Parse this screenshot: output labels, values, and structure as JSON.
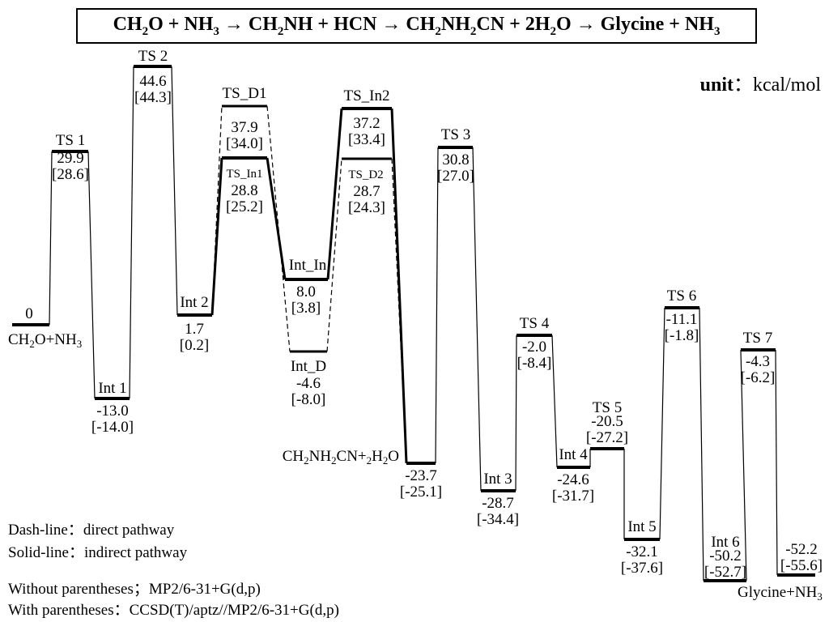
{
  "title": {
    "reaction": "CH2O + NH3 → CH2NH + HCN → CH2NH2CN + 2H2O → Glycine + NH3"
  },
  "unit": {
    "label": "unit",
    "value": "：kcal/mol"
  },
  "legend": {
    "dash": "Dash-line：direct pathway",
    "solid": "Solid-line：indirect pathway",
    "without": "Without parentheses；MP2/6-31+G(d,p)",
    "with": "With parentheses：CCSD(T)/aptz//MP2/6-31+G(d,p)"
  },
  "levels": [
    {
      "id": "reactants",
      "name": "CH2O+NH3",
      "mp2": "0",
      "ccsd": ""
    },
    {
      "id": "ts1",
      "name": "TS 1",
      "mp2": "29.9",
      "ccsd": "[28.6]"
    },
    {
      "id": "int1",
      "name": "Int 1",
      "mp2": "-13.0",
      "ccsd": "[-14.0]"
    },
    {
      "id": "ts2",
      "name": "TS 2",
      "mp2": "44.6",
      "ccsd": "[44.3]"
    },
    {
      "id": "int2",
      "name": "Int 2",
      "mp2": "1.7",
      "ccsd": "[0.2]"
    },
    {
      "id": "ts_d1",
      "name": "TS_D1",
      "mp2": "37.9",
      "ccsd": "[34.0]"
    },
    {
      "id": "ts_in1",
      "name": "TS_In1",
      "mp2": "28.8",
      "ccsd": "[25.2]"
    },
    {
      "id": "int_in",
      "name": "Int_In",
      "mp2": "8.0",
      "ccsd": "[3.8]"
    },
    {
      "id": "int_d",
      "name": "Int_D",
      "mp2": "-4.6",
      "ccsd": "[-8.0]"
    },
    {
      "id": "ts_in2",
      "name": "TS_In2",
      "mp2": "37.2",
      "ccsd": "[33.4]"
    },
    {
      "id": "ts_d2",
      "name": "TS_D2",
      "mp2": "28.7",
      "ccsd": "[24.3]"
    },
    {
      "id": "aminoacetonitrile",
      "name": "CH2NH2CN+2H2O",
      "mp2": "-23.7",
      "ccsd": "[-25.1]"
    },
    {
      "id": "ts3",
      "name": "TS 3",
      "mp2": "30.8",
      "ccsd": "[27.0]"
    },
    {
      "id": "int3",
      "name": "Int 3",
      "mp2": "-28.7",
      "ccsd": "[-34.4]"
    },
    {
      "id": "ts4",
      "name": "TS 4",
      "mp2": "-2.0",
      "ccsd": "[-8.4]"
    },
    {
      "id": "int4",
      "name": "Int 4",
      "mp2": "-24.6",
      "ccsd": "[-31.7]"
    },
    {
      "id": "ts5",
      "name": "TS 5",
      "mp2": "-20.5",
      "ccsd": "[-27.2]"
    },
    {
      "id": "int5",
      "name": "Int 5",
      "mp2": "-32.1",
      "ccsd": "[-37.6]"
    },
    {
      "id": "ts6",
      "name": "TS 6",
      "mp2": "-11.1",
      "ccsd": "[-1.8]"
    },
    {
      "id": "int6",
      "name": "Int 6",
      "mp2": "-50.2",
      "ccsd": "[-52.7]"
    },
    {
      "id": "ts7",
      "name": "TS 7",
      "mp2": "-4.3",
      "ccsd": "[-6.2]"
    },
    {
      "id": "products",
      "name": "Glycine+NH3",
      "mp2": "-52.2",
      "ccsd": "[-55.6]"
    }
  ],
  "connections": [
    {
      "from": "reactants",
      "to": "ts1",
      "style": "solid"
    },
    {
      "from": "ts1",
      "to": "int1",
      "style": "solid"
    },
    {
      "from": "int1",
      "to": "ts2",
      "style": "solid"
    },
    {
      "from": "ts2",
      "to": "int2",
      "style": "solid"
    },
    {
      "from": "int2",
      "to": "ts_d1",
      "style": "dashed"
    },
    {
      "from": "ts_d1",
      "to": "int_d",
      "style": "dashed"
    },
    {
      "from": "int_d",
      "to": "ts_d2",
      "style": "dashed"
    },
    {
      "from": "ts_d2",
      "to": "aminoacetonitrile",
      "style": "dashed"
    },
    {
      "from": "int2",
      "to": "ts_in1",
      "style": "bold"
    },
    {
      "from": "ts_in1",
      "to": "int_in",
      "style": "bold"
    },
    {
      "from": "int_in",
      "to": "ts_in2",
      "style": "bold"
    },
    {
      "from": "ts_in2",
      "to": "aminoacetonitrile",
      "style": "bold"
    },
    {
      "from": "aminoacetonitrile",
      "to": "ts3",
      "style": "solid"
    },
    {
      "from": "ts3",
      "to": "int3",
      "style": "solid"
    },
    {
      "from": "int3",
      "to": "ts4",
      "style": "solid"
    },
    {
      "from": "ts4",
      "to": "int4",
      "style": "solid"
    },
    {
      "from": "int4",
      "to": "ts5",
      "style": "solid"
    },
    {
      "from": "ts5",
      "to": "int5",
      "style": "solid"
    },
    {
      "from": "int5",
      "to": "ts6",
      "style": "solid"
    },
    {
      "from": "ts6",
      "to": "int6",
      "style": "solid"
    },
    {
      "from": "int6",
      "to": "ts7",
      "style": "solid"
    },
    {
      "from": "ts7",
      "to": "products",
      "style": "solid"
    }
  ]
}
